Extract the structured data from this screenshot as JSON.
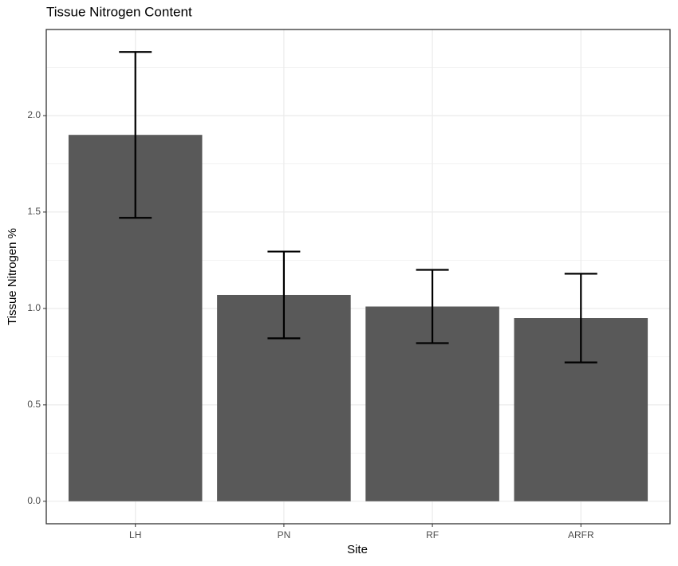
{
  "chart_data": {
    "type": "bar",
    "title": "Tissue Nitrogen Content",
    "x_label": "Site",
    "y_label": "Tissue Nitrogen %",
    "categories": [
      "LH",
      "PN",
      "RF",
      "ARFR"
    ],
    "values": [
      1.9,
      1.07,
      1.01,
      0.95
    ],
    "errors": [
      0.43,
      0.225,
      0.19,
      0.23
    ],
    "color": "#595959",
    "error_color": "#000000",
    "ylim": [
      -0.1165,
      2.4465
    ],
    "yticks": [
      {
        "value": 0,
        "label": "0.0"
      },
      {
        "value": 0.5,
        "label": "0.5"
      },
      {
        "value": 1,
        "label": "1.0"
      },
      {
        "value": 1.5,
        "label": "1.5"
      },
      {
        "value": 2,
        "label": "2.0"
      }
    ],
    "grid": true,
    "minor_grid": true
  }
}
